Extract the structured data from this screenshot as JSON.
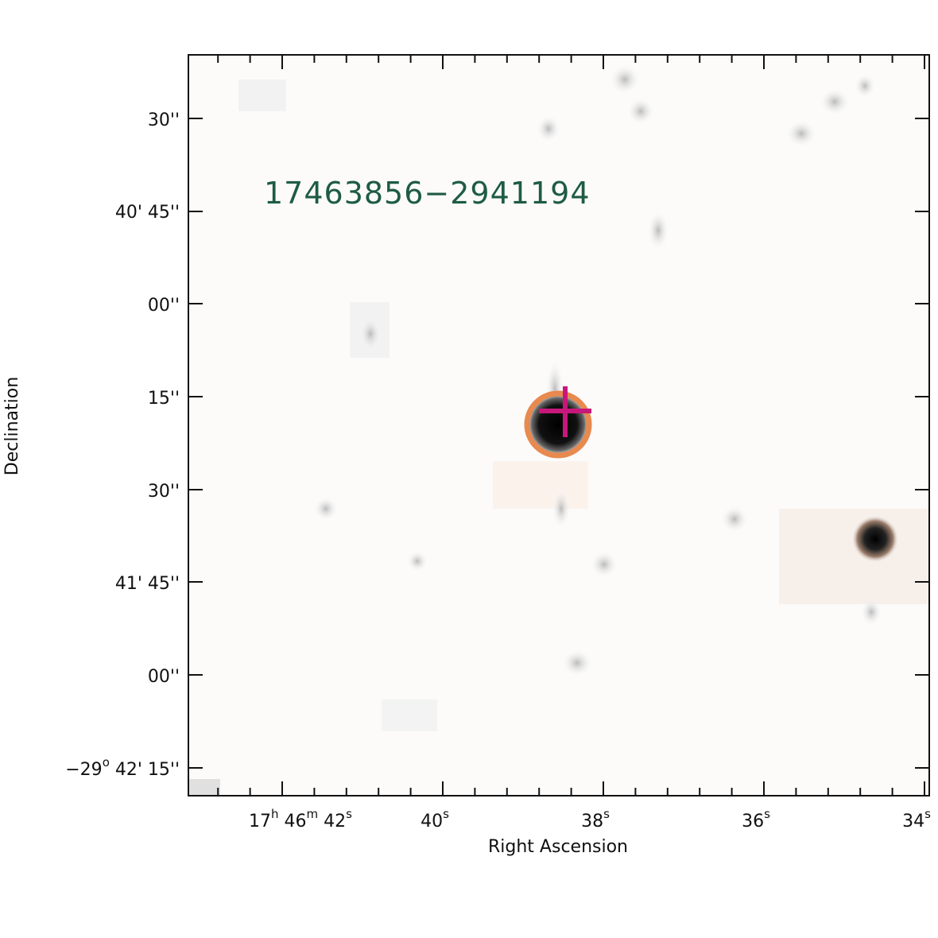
{
  "image": {
    "type": "astronomical-finder-chart",
    "source_label": "17463856−2941194",
    "colors": {
      "source_label": "#1e5b45",
      "circle_marker": "#e8894f",
      "cross_marker": "#c8177a",
      "axis": "#111111"
    }
  },
  "axes": {
    "xlabel": "Right Ascension",
    "ylabel": "Declination",
    "ra_ticks": [
      {
        "hours": "17",
        "minutes": "46",
        "seconds": "42"
      },
      {
        "seconds": "40"
      },
      {
        "seconds": "38"
      },
      {
        "seconds": "36"
      },
      {
        "seconds": "34"
      }
    ],
    "ra_units": {
      "h": "h",
      "m": "m",
      "s": "s"
    },
    "dec_ticks": [
      {
        "text": "30''"
      },
      {
        "text": "40' 45''"
      },
      {
        "text": "00''"
      },
      {
        "text": "15''"
      },
      {
        "text": "30''"
      },
      {
        "text": "41' 45''"
      },
      {
        "text": "00''"
      },
      {
        "deg": "−29",
        "deg_sup": "o",
        "rest": "42' 15''"
      }
    ]
  }
}
